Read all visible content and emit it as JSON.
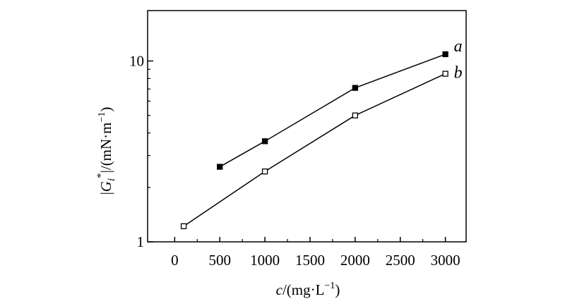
{
  "chart_data": {
    "type": "line",
    "xlabel": {
      "var": "c",
      "unit": "/(mg·L",
      "sup": "−1",
      "close": ")"
    },
    "ylabel": {
      "bar1": "|",
      "var": "G",
      "sub": "i",
      "sup": "*",
      "bar2": "|",
      "unit": "/(mN·m",
      "unit_sup": "−1",
      "close": ")"
    },
    "xlim": [
      -300,
      3230
    ],
    "ylim": [
      1,
      19
    ],
    "yscale": "log",
    "x_ticks": [
      0,
      500,
      1000,
      1500,
      2000,
      2500,
      3000
    ],
    "x_tick_labels": [
      "0",
      "500",
      "1000",
      "1500",
      "2000",
      "2500",
      "3000"
    ],
    "y_ticks": [
      1,
      10
    ],
    "y_tick_labels": [
      "1",
      "10"
    ],
    "grid": false,
    "series": [
      {
        "name": "a",
        "marker": "filled-square",
        "x": [
          500,
          1000,
          2000,
          3000
        ],
        "y": [
          2.6,
          3.6,
          7.1,
          10.9
        ]
      },
      {
        "name": "b",
        "marker": "open-square",
        "x": [
          100,
          1000,
          2000,
          3000
        ],
        "y": [
          1.22,
          2.45,
          5.0,
          8.5
        ]
      }
    ]
  }
}
